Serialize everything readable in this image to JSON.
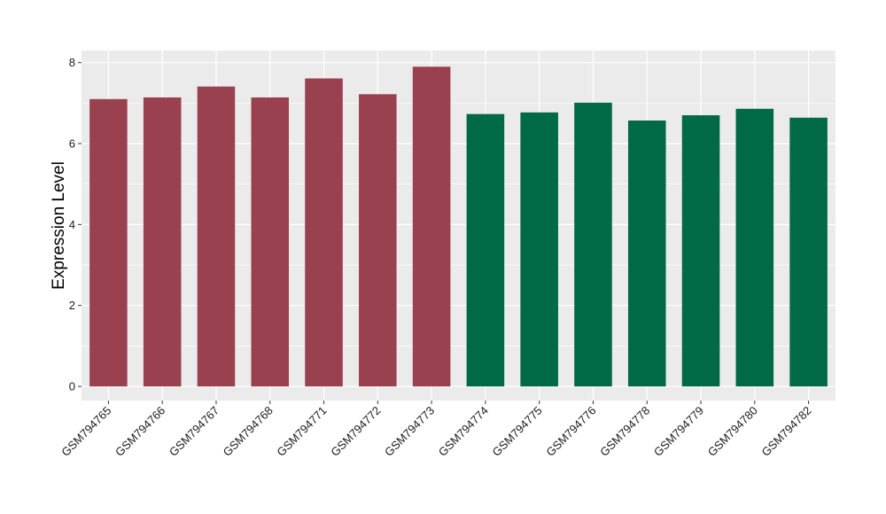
{
  "chart_data": {
    "type": "bar",
    "ylabel": "Expression Level",
    "xlabel": "",
    "ylim": [
      -0.35,
      8.3
    ],
    "yticks": [
      0,
      2,
      4,
      6,
      8
    ],
    "grid": true,
    "categories": [
      "GSM794765",
      "GSM794766",
      "GSM794767",
      "GSM794768",
      "GSM794771",
      "GSM794772",
      "GSM794773",
      "GSM794774",
      "GSM794775",
      "GSM794776",
      "GSM794778",
      "GSM794779",
      "GSM794780",
      "GSM794782"
    ],
    "values": [
      7.1,
      7.14,
      7.41,
      7.14,
      7.61,
      7.22,
      7.9,
      6.73,
      6.77,
      7.01,
      6.57,
      6.7,
      6.86,
      6.64
    ],
    "bar_colors": [
      "#9A4150",
      "#9A4150",
      "#9A4150",
      "#9A4150",
      "#9A4150",
      "#9A4150",
      "#9A4150",
      "#006946",
      "#006946",
      "#006946",
      "#006946",
      "#006946",
      "#006946",
      "#006946"
    ],
    "panel_background": "#EBEBEB",
    "grid_color": "#FFFFFF"
  }
}
